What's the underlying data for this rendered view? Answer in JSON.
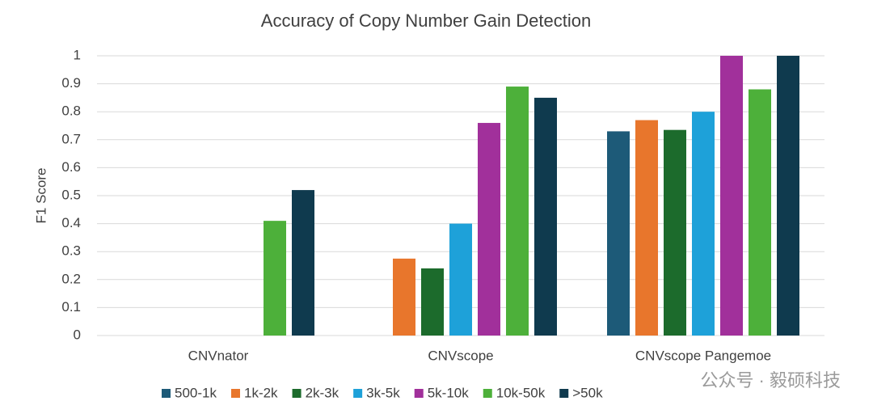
{
  "chart_data": {
    "type": "bar",
    "title": "Accuracy of Copy Number Gain Detection",
    "y_label": "F1 Score",
    "categories": [
      "CNVnator",
      "CNVscope",
      "CNVscope Pangemoe"
    ],
    "series": [
      {
        "name": "500-1k",
        "color": "#1d5a78",
        "values": [
          0,
          0,
          0.73
        ]
      },
      {
        "name": "1k-2k",
        "color": "#e8762c",
        "values": [
          0,
          0.275,
          0.77
        ]
      },
      {
        "name": "2k-3k",
        "color": "#1c6b2c",
        "values": [
          0,
          0.24,
          0.735
        ]
      },
      {
        "name": "3k-5k",
        "color": "#1ea1d9",
        "values": [
          0,
          0.4,
          0.8
        ]
      },
      {
        "name": "5k-10k",
        "color": "#a1309b",
        "values": [
          0,
          0.76,
          1
        ]
      },
      {
        "name": "10k-50k",
        "color": "#4db03a",
        "values": [
          0.41,
          0.89,
          0.88
        ]
      },
      {
        "name": ">50k",
        "color": "#0f3a4e",
        "values": [
          0.52,
          0.85,
          1
        ]
      }
    ],
    "ylim": [
      0,
      1
    ],
    "yticks": [
      0,
      0.1,
      0.2,
      0.3,
      0.4,
      0.5,
      0.6,
      0.7,
      0.8,
      0.9,
      1
    ],
    "grid": true,
    "legend": "bottom",
    "watermark": "公众号 · 毅硕科技"
  }
}
